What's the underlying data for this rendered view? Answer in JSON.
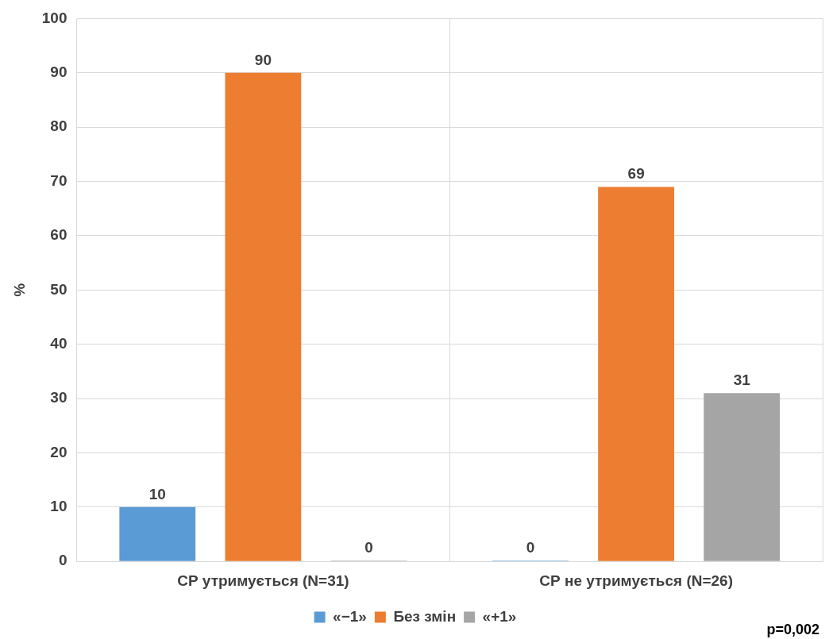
{
  "chart_data": {
    "type": "bar",
    "ylabel": "%",
    "categories": [
      "СР утримується (N=31)",
      "СР не утримується (N=26)"
    ],
    "series": [
      {
        "name": "«−1»",
        "color": "#5b9bd5",
        "values": [
          10,
          0
        ]
      },
      {
        "name": "Без змін",
        "color": "#ed7d31",
        "values": [
          90,
          69
        ]
      },
      {
        "name": "«+1»",
        "color": "#a5a5a5",
        "values": [
          0,
          31
        ]
      }
    ],
    "ylim": [
      0,
      100
    ],
    "yticks": [
      0,
      10,
      20,
      30,
      40,
      50,
      60,
      70,
      80,
      90,
      100
    ],
    "grid": true,
    "legend": "bottom",
    "data_labels": true,
    "annotations": [
      "p=0,002"
    ]
  }
}
